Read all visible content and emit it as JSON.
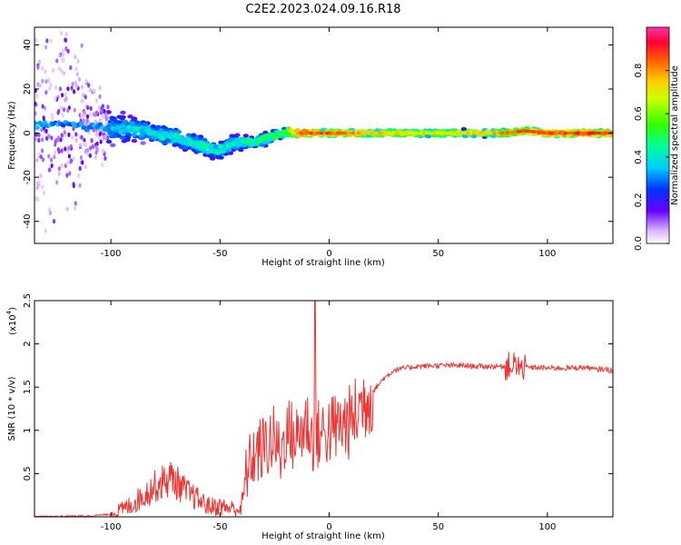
{
  "figure": {
    "title": "C2E2.2023.024.09.16.R18"
  },
  "chart_data": [
    {
      "type": "heatmap",
      "xlabel": "Height of straight line (km)",
      "ylabel": "Frequency (Hz)",
      "xlim": [
        -135,
        130
      ],
      "ylim": [
        -50,
        48
      ],
      "xticks": [
        -100,
        -50,
        0,
        50,
        100
      ],
      "yticks": [
        -40,
        -20,
        0,
        20,
        40
      ],
      "colorbar": {
        "label": "Normalized spectral amplitude",
        "range": [
          0.0,
          1.0
        ],
        "ticks": [
          0.0,
          0.2,
          0.4,
          0.6,
          0.8
        ],
        "colormap": "rainbow"
      },
      "ridge": {
        "x": [
          -135,
          -120,
          -110,
          -100,
          -90,
          -80,
          -70,
          -60,
          -55,
          -50,
          -45,
          -40,
          -35,
          -30,
          -25,
          -20,
          -15,
          -10,
          0,
          10,
          20,
          40,
          60,
          80,
          90,
          100,
          115,
          130
        ],
        "freq": [
          4,
          4,
          3,
          2,
          2,
          0,
          -2,
          -5,
          -7,
          -8,
          -5,
          -4,
          -4,
          -3,
          -1,
          0,
          0,
          0,
          0,
          0,
          0,
          0,
          0,
          0,
          1,
          0,
          0,
          0
        ],
        "amplitude": [
          0.3,
          0.3,
          0.32,
          0.35,
          0.38,
          0.4,
          0.42,
          0.42,
          0.42,
          0.4,
          0.42,
          0.44,
          0.44,
          0.46,
          0.5,
          0.55,
          0.8,
          0.85,
          0.85,
          0.8,
          0.75,
          0.7,
          0.7,
          0.8,
          0.9,
          0.85,
          0.9,
          0.9
        ]
      },
      "spread_hz": [
        45,
        45,
        25,
        10,
        8,
        6,
        6,
        6,
        6,
        5,
        5,
        4,
        4,
        4,
        3,
        3,
        2,
        2,
        2,
        2,
        2,
        2,
        2,
        2,
        2,
        2,
        2,
        2
      ]
    },
    {
      "type": "line",
      "xlabel": "Height of straight line (km)",
      "ylabel": "SNR (10 * v/v)",
      "yscale_label": "(x10",
      "yscale_exp": "4",
      "xlim": [
        -135,
        130
      ],
      "ylim": [
        0,
        2.5
      ],
      "xticks": [
        -100,
        -50,
        0,
        50,
        100
      ],
      "yticks": [
        0.5,
        1.0,
        1.5,
        2.0,
        2.5
      ],
      "color": "#ee3333",
      "series": [
        {
          "x": [
            -135,
            -110,
            -100,
            -95,
            -90,
            -85,
            -80,
            -75,
            -72,
            -70,
            -68,
            -65,
            -60,
            -55,
            -50,
            -45,
            -40,
            -38,
            -35,
            -30,
            -25,
            -22,
            -20,
            -15,
            -10,
            -8,
            -5,
            0,
            5,
            10,
            15,
            20,
            25,
            30,
            40,
            50,
            60,
            70,
            80,
            84,
            87,
            90,
            100,
            110,
            118,
            122,
            125,
            130
          ],
          "y": [
            0.0,
            0.01,
            0.03,
            0.08,
            0.15,
            0.25,
            0.35,
            0.42,
            0.45,
            0.4,
            0.35,
            0.28,
            0.2,
            0.12,
            0.12,
            0.1,
            0.08,
            0.5,
            0.7,
            0.8,
            0.9,
            0.7,
            1.0,
            0.9,
            1.1,
            0.9,
            0.95,
            1.0,
            1.05,
            1.1,
            1.3,
            1.45,
            1.6,
            1.7,
            1.74,
            1.75,
            1.75,
            1.74,
            1.74,
            1.75,
            1.72,
            1.73,
            1.72,
            1.72,
            1.73,
            1.7,
            1.71,
            1.69
          ]
        }
      ],
      "annotations": {
        "spike_x": -6.5,
        "spike_y": 2.5
      }
    }
  ]
}
